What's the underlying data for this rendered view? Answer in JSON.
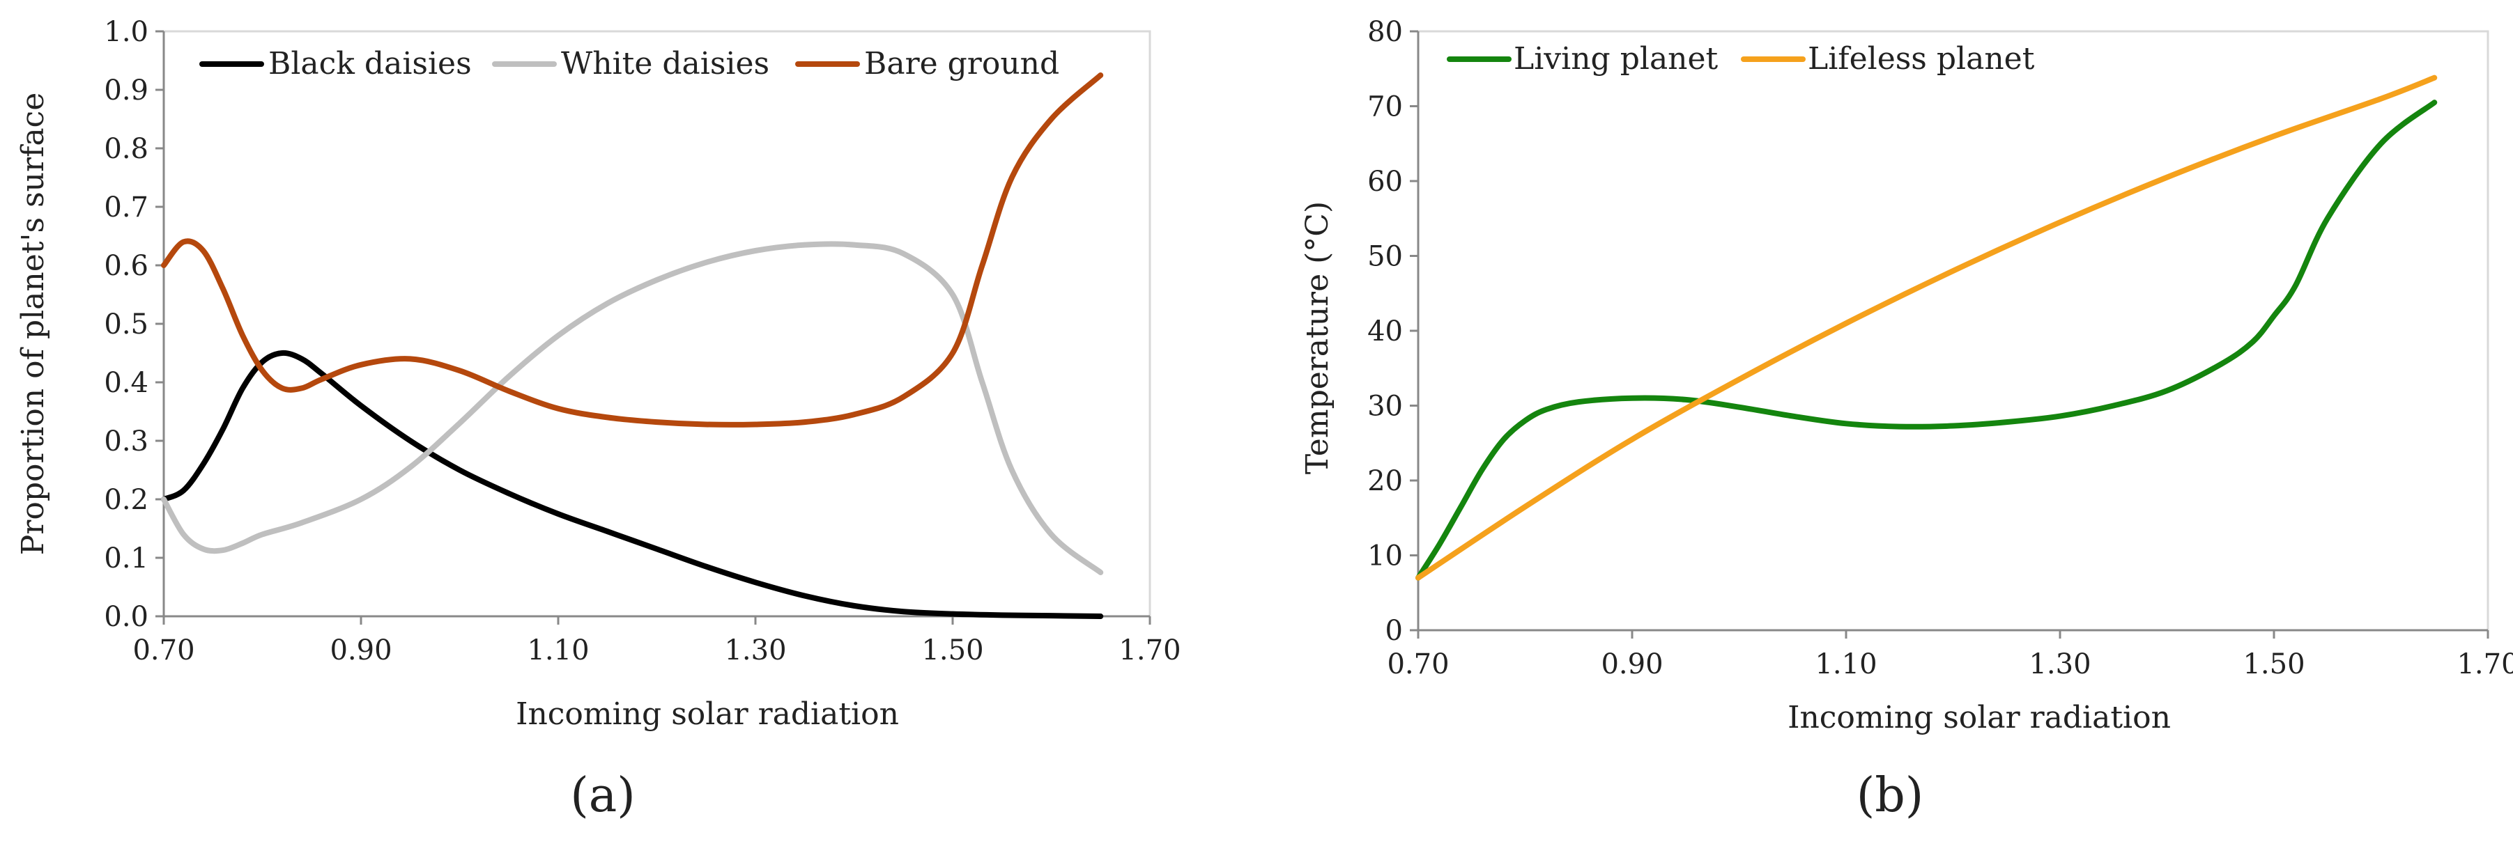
{
  "chart_data": [
    {
      "type": "line",
      "panel_label": "(a)",
      "xlabel": "Incoming solar radiation",
      "ylabel": "Proportion of planet's surface",
      "xlim": [
        0.7,
        1.7
      ],
      "ylim": [
        0.0,
        1.0
      ],
      "x_ticks": [
        0.7,
        0.9,
        1.1,
        1.3,
        1.5,
        1.7
      ],
      "x_tick_labels": [
        "0.70",
        "0.90",
        "1.10",
        "1.30",
        "1.50",
        "1.70"
      ],
      "y_ticks": [
        0.0,
        0.1,
        0.2,
        0.3,
        0.4,
        0.5,
        0.6,
        0.7,
        0.8,
        0.9,
        1.0
      ],
      "y_tick_labels": [
        "0.0",
        "0.1",
        "0.2",
        "0.3",
        "0.4",
        "0.5",
        "0.6",
        "0.7",
        "0.8",
        "0.9",
        "1.0"
      ],
      "grid": false,
      "legend_position": "top",
      "series": [
        {
          "name": "Black daisies",
          "color": "#000000",
          "x": [
            0.7,
            0.72,
            0.74,
            0.76,
            0.78,
            0.8,
            0.82,
            0.84,
            0.86,
            0.9,
            0.95,
            1.0,
            1.05,
            1.1,
            1.15,
            1.2,
            1.25,
            1.3,
            1.35,
            1.4,
            1.45,
            1.5,
            1.55,
            1.6,
            1.65
          ],
          "y": [
            0.2,
            0.215,
            0.26,
            0.32,
            0.39,
            0.435,
            0.45,
            0.44,
            0.415,
            0.36,
            0.3,
            0.25,
            0.21,
            0.175,
            0.145,
            0.115,
            0.085,
            0.058,
            0.035,
            0.018,
            0.008,
            0.004,
            0.002,
            0.001,
            0.0
          ]
        },
        {
          "name": "White daisies",
          "color": "#bfbfbf",
          "x": [
            0.7,
            0.72,
            0.74,
            0.76,
            0.78,
            0.8,
            0.84,
            0.9,
            0.95,
            1.0,
            1.05,
            1.1,
            1.15,
            1.2,
            1.25,
            1.3,
            1.35,
            1.4,
            1.45,
            1.5,
            1.53,
            1.56,
            1.6,
            1.65
          ],
          "y": [
            0.2,
            0.14,
            0.115,
            0.113,
            0.125,
            0.14,
            0.16,
            0.2,
            0.255,
            0.33,
            0.41,
            0.48,
            0.535,
            0.575,
            0.605,
            0.625,
            0.635,
            0.635,
            0.62,
            0.55,
            0.4,
            0.25,
            0.14,
            0.075
          ]
        },
        {
          "name": "Bare ground",
          "color": "#b5480d",
          "x": [
            0.7,
            0.72,
            0.74,
            0.76,
            0.78,
            0.8,
            0.82,
            0.84,
            0.86,
            0.9,
            0.95,
            1.0,
            1.05,
            1.1,
            1.15,
            1.2,
            1.25,
            1.3,
            1.35,
            1.4,
            1.45,
            1.5,
            1.53,
            1.56,
            1.6,
            1.65
          ],
          "y": [
            0.6,
            0.64,
            0.625,
            0.56,
            0.48,
            0.42,
            0.39,
            0.39,
            0.405,
            0.43,
            0.44,
            0.42,
            0.385,
            0.355,
            0.34,
            0.332,
            0.328,
            0.328,
            0.332,
            0.345,
            0.375,
            0.45,
            0.6,
            0.75,
            0.85,
            0.925
          ]
        }
      ]
    },
    {
      "type": "line",
      "panel_label": "(b)",
      "xlabel": "Incoming solar radiation",
      "ylabel": "Temperature (°C)",
      "xlim": [
        0.7,
        1.7
      ],
      "ylim": [
        0,
        80
      ],
      "x_ticks": [
        0.7,
        0.9,
        1.1,
        1.3,
        1.5,
        1.7
      ],
      "x_tick_labels": [
        "0.70",
        "0.90",
        "1.10",
        "1.30",
        "1.50",
        "1.70"
      ],
      "y_ticks": [
        0,
        10,
        20,
        30,
        40,
        50,
        60,
        70,
        80
      ],
      "y_tick_labels": [
        "0",
        "10",
        "20",
        "30",
        "40",
        "50",
        "60",
        "70",
        "80"
      ],
      "grid": false,
      "legend_position": "top-left",
      "series": [
        {
          "name": "Living planet",
          "color": "#14850e",
          "x": [
            0.7,
            0.72,
            0.74,
            0.76,
            0.78,
            0.8,
            0.82,
            0.85,
            0.9,
            0.95,
            1.0,
            1.05,
            1.1,
            1.15,
            1.2,
            1.25,
            1.3,
            1.35,
            1.4,
            1.45,
            1.48,
            1.5,
            1.52,
            1.55,
            1.6,
            1.65
          ],
          "y": [
            7,
            11.5,
            16.5,
            21.5,
            25.5,
            28,
            29.5,
            30.5,
            31,
            30.8,
            29.8,
            28.6,
            27.6,
            27.2,
            27.3,
            27.8,
            28.6,
            30,
            32,
            35.5,
            38.5,
            42,
            46,
            55,
            65,
            70.5
          ]
        },
        {
          "name": "Lifeless planet",
          "color": "#f5a11c",
          "x": [
            0.7,
            0.8,
            0.9,
            1.0,
            1.1,
            1.2,
            1.3,
            1.4,
            1.5,
            1.6,
            1.65
          ],
          "y": [
            7,
            16.5,
            25.5,
            33.5,
            41,
            48,
            54.5,
            60.5,
            66,
            71,
            73.8
          ]
        }
      ]
    }
  ]
}
